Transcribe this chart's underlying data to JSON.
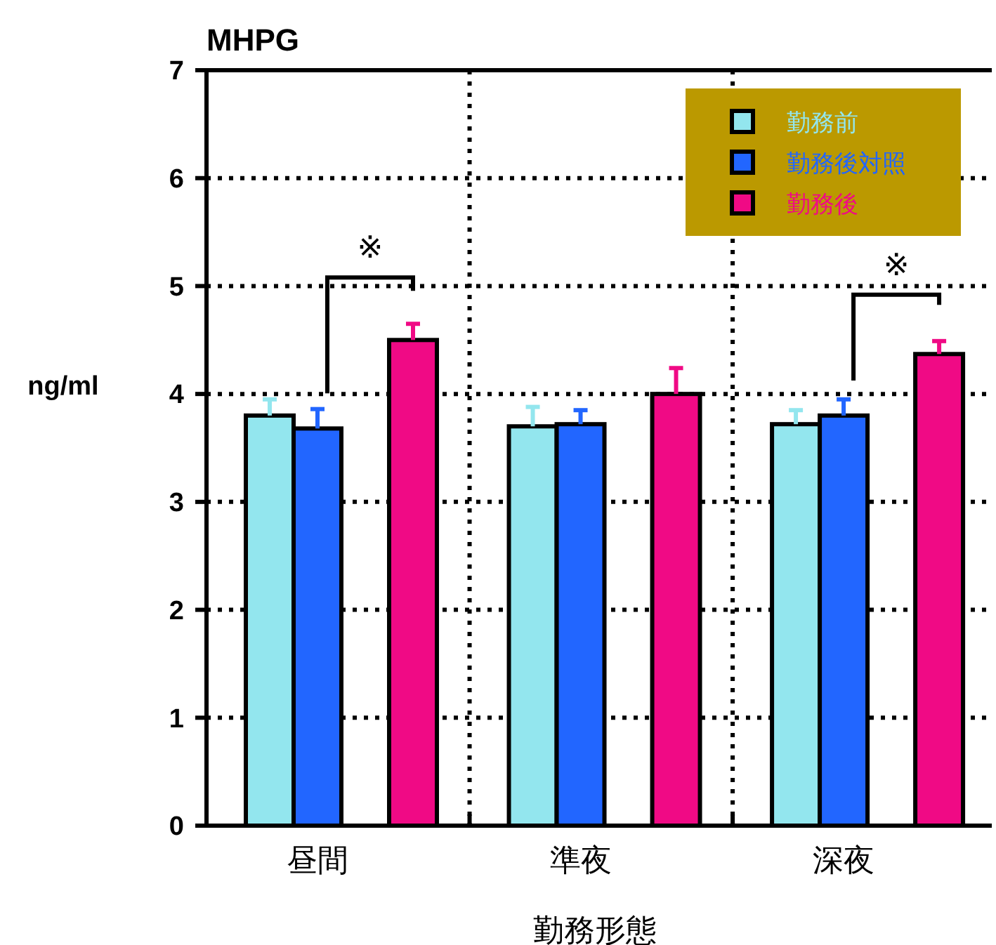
{
  "chart_data": {
    "type": "bar",
    "title": "MHPG",
    "ylabel": "ng/ml",
    "xlabel": "勤務形態",
    "categories": [
      "昼間",
      "準夜",
      "深夜"
    ],
    "series": [
      {
        "name": "勤務前",
        "color": "#93e6ee",
        "values": [
          3.8,
          3.7,
          3.72
        ],
        "errors": [
          0.15,
          0.18,
          0.13
        ]
      },
      {
        "name": "勤務後対照",
        "color": "#2266ff",
        "values": [
          3.68,
          3.72,
          3.8
        ],
        "errors": [
          0.18,
          0.13,
          0.15
        ]
      },
      {
        "name": "勤務後",
        "color": "#f00a85",
        "values": [
          4.5,
          4.0,
          4.37
        ],
        "errors": [
          0.15,
          0.24,
          0.12
        ]
      }
    ],
    "ylim": [
      0,
      7
    ],
    "yticks": [
      0,
      1,
      2,
      3,
      4,
      5,
      6,
      7
    ],
    "grid": true,
    "legend": "top right",
    "annotations": [
      "※",
      "※"
    ]
  }
}
